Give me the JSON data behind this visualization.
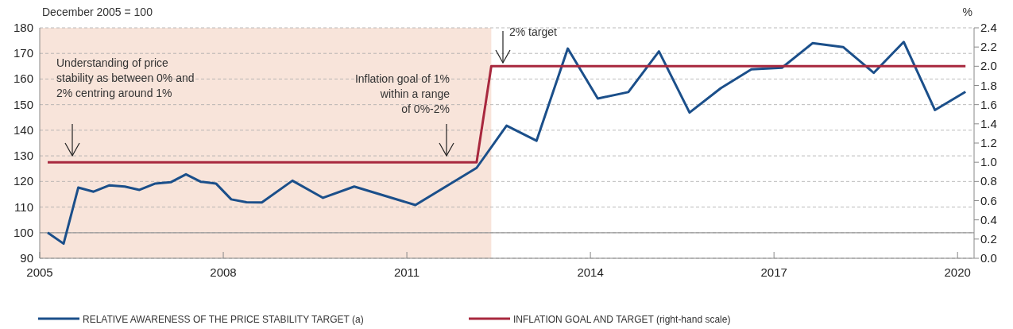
{
  "chart_data": {
    "type": "line",
    "ylabel": "December 2005 = 100",
    "y2label": "%",
    "xlim": [
      2005,
      2020.27
    ],
    "xticks": [
      2005,
      2008,
      2011,
      2014,
      2017,
      2020
    ],
    "ylim": [
      90,
      180
    ],
    "yticks": [
      90,
      100,
      110,
      120,
      130,
      140,
      150,
      160,
      170,
      180
    ],
    "y2lim": [
      0,
      2.4
    ],
    "y2ticks": [
      {
        "value": 0,
        "label": "0.0"
      },
      {
        "value": 0.2,
        "label": "0.2"
      },
      {
        "value": 0.4,
        "label": "0.4"
      },
      {
        "value": 0.6,
        "label": "0.6"
      },
      {
        "value": 0.8,
        "label": "0.8"
      },
      {
        "value": 1,
        "label": "1.0"
      },
      {
        "value": 1.2,
        "label": "1.2"
      },
      {
        "value": 1.4,
        "label": "1.4"
      },
      {
        "value": 1.6,
        "label": "1.6"
      },
      {
        "value": 1.8,
        "label": "1.8"
      },
      {
        "value": 2,
        "label": "2.0"
      },
      {
        "value": 2.2,
        "label": "2.2"
      },
      {
        "value": 2.4,
        "label": "2.4"
      }
    ],
    "grid": "y",
    "legend": "bottom",
    "line_style": "solid",
    "bands": [
      {
        "axis": "x",
        "from": 2005,
        "to": 2012.38,
        "color": "#f8e4da"
      }
    ],
    "ref_lines": [
      {
        "axis": "y",
        "value": 100,
        "color": "#999999"
      }
    ],
    "series": [
      {
        "name": "RELATIVE AWARENESS OF THE PRICE STABILITY TARGET (a)",
        "color": "#1b4f8a",
        "x": [
          2005.13,
          2005.39,
          2005.63,
          2005.88,
          2006.14,
          2006.39,
          2006.63,
          2006.89,
          2007.14,
          2007.39,
          2007.63,
          2007.88,
          2008.13,
          2008.38,
          2008.63,
          2009.13,
          2009.63,
          2010.14,
          2011.14,
          2012.14,
          2012.63,
          2013.12,
          2013.63,
          2014.12,
          2014.62,
          2015.12,
          2015.62,
          2016.13,
          2016.63,
          2017.13,
          2017.63,
          2018.13,
          2018.63,
          2019.12,
          2019.63,
          2020.13
        ],
        "values": [
          100,
          95.7,
          117.6,
          116,
          118.5,
          118,
          116.7,
          119.2,
          119.7,
          122.8,
          119.9,
          119.2,
          113,
          111.9,
          111.8,
          120.3,
          113.6,
          118,
          110.8,
          125.3,
          141.8,
          135.9,
          171.9,
          152.4,
          154.9,
          170.8,
          146.9,
          156.4,
          163.8,
          164.4,
          174,
          172.5,
          162.4,
          174.5,
          147.9,
          155
        ]
      },
      {
        "name": "INFLATION GOAL AND TARGET (right-hand scale)",
        "color": "#a8283e",
        "axis": "y2",
        "x": [
          2005.13,
          2012.14,
          2012.38,
          2020.13
        ],
        "values": [
          1,
          1,
          2,
          2
        ]
      }
    ],
    "annotations": [
      "Understanding of price\nstability as between 0% and\n2% centring around 1%",
      "Inflation goal of 1%\nwithin a range\nof 0%-2%",
      "2% target"
    ]
  }
}
